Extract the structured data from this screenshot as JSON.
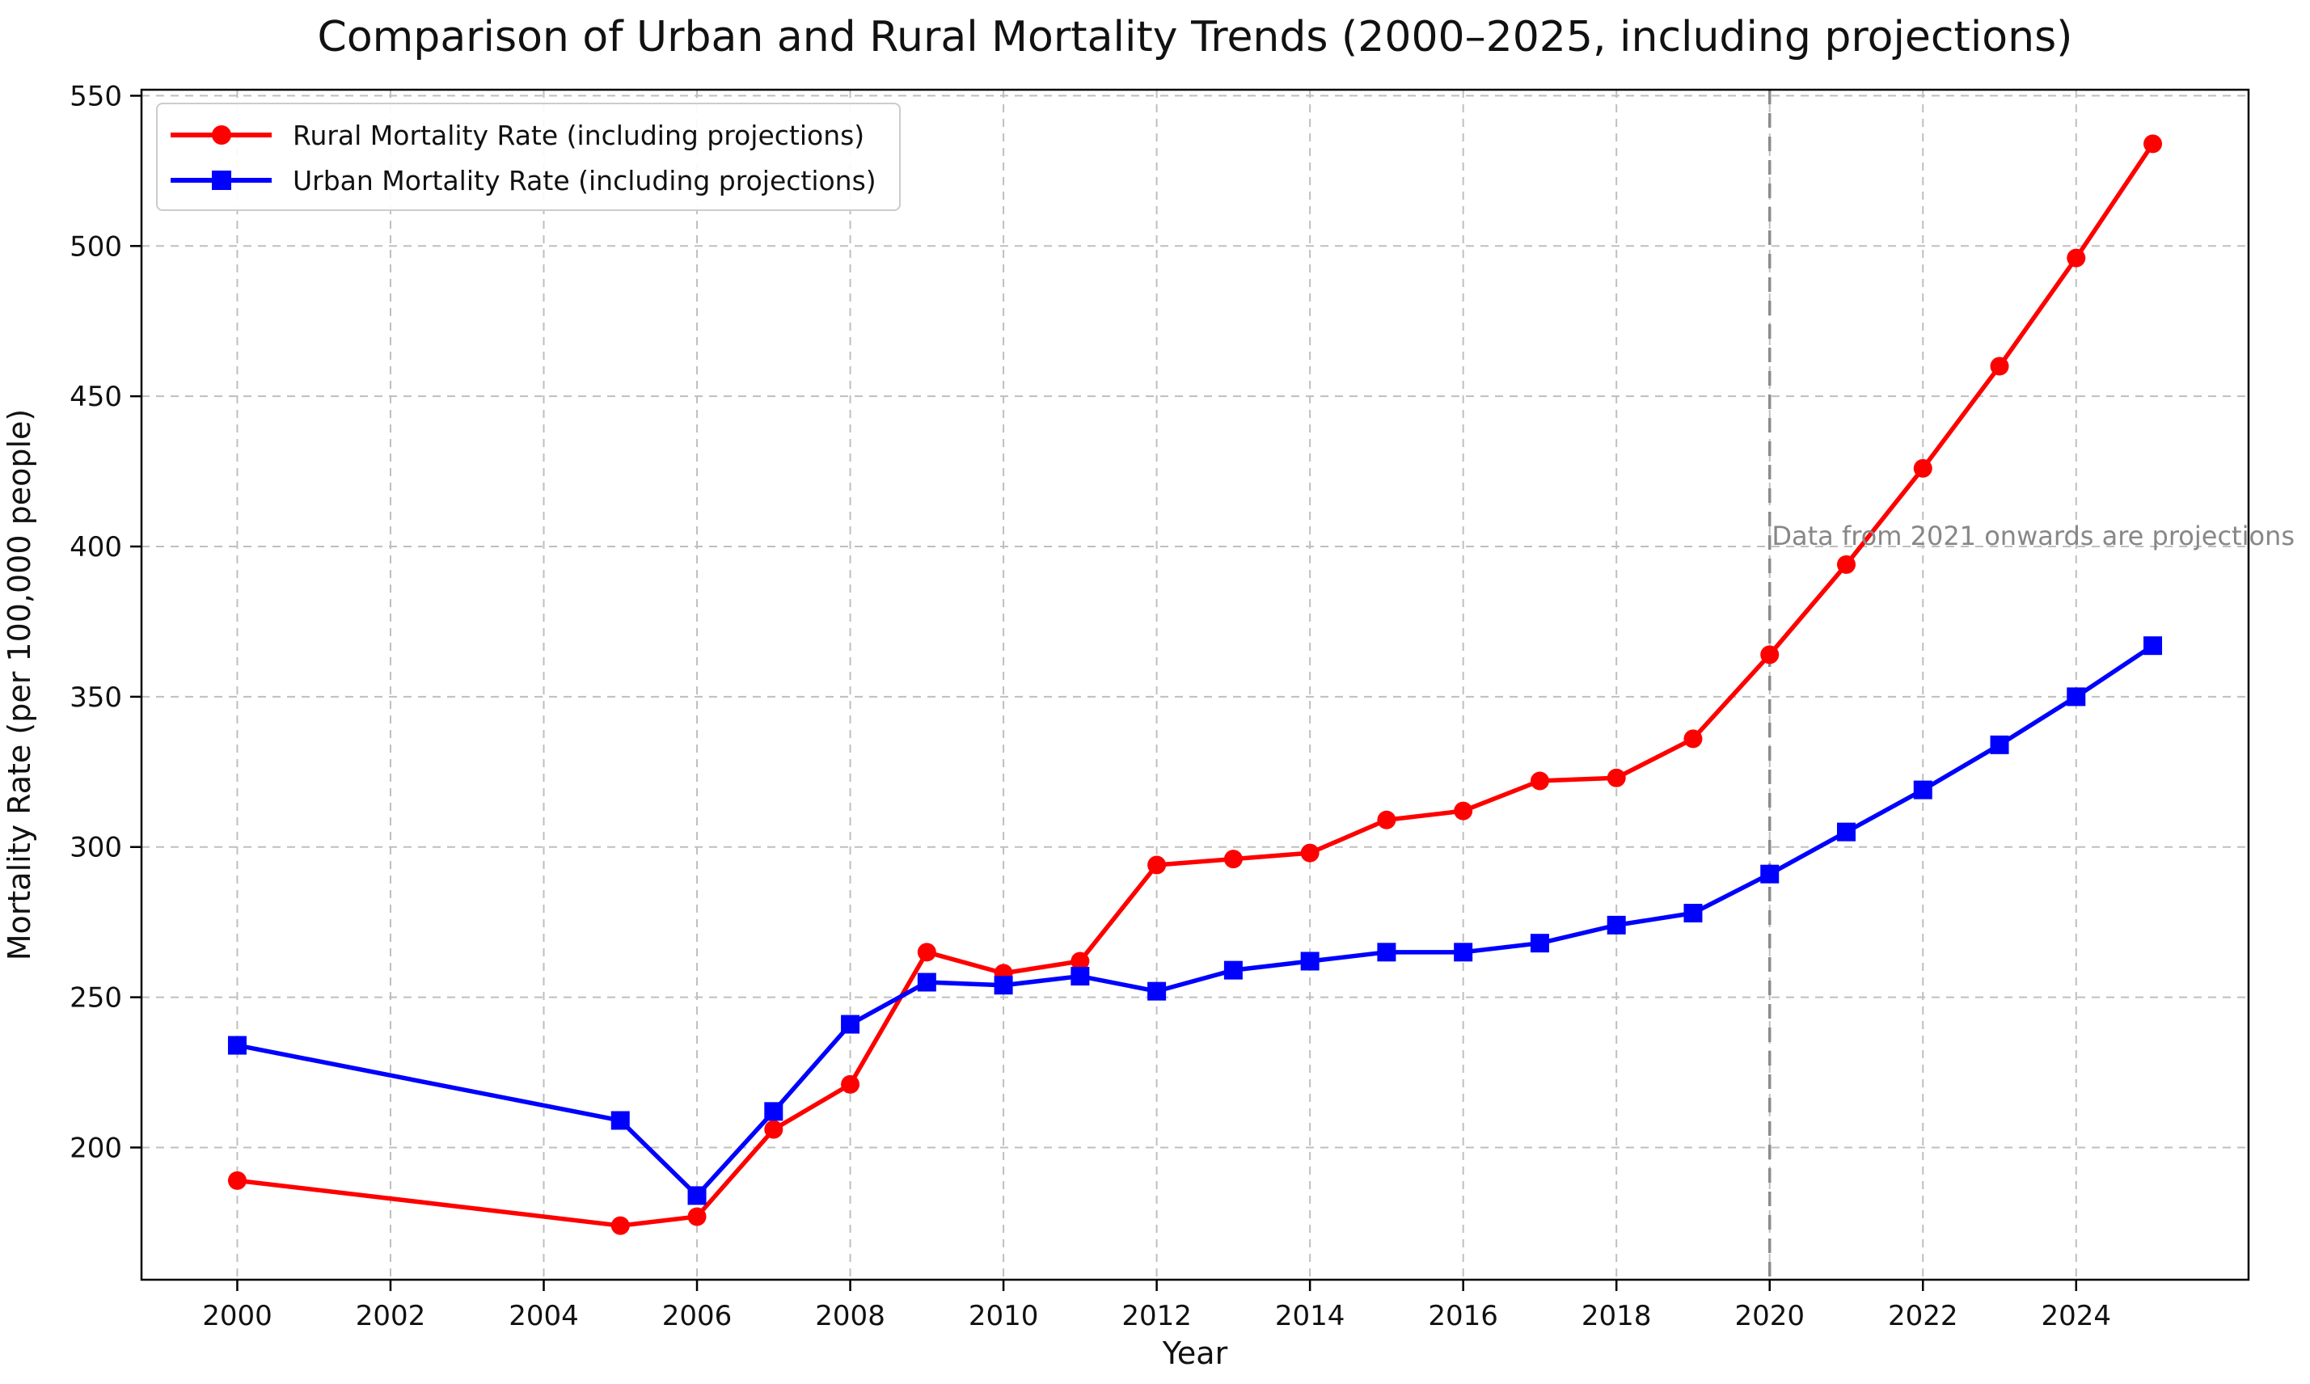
{
  "title": "Comparison of Urban and Rural Mortality Trends (2000–2025, including projections)",
  "axes": {
    "x_label": "Year",
    "y_label": "Mortality Rate (per 100,000 people)",
    "x_ticks": [
      2000,
      2002,
      2004,
      2006,
      2008,
      2010,
      2012,
      2014,
      2016,
      2018,
      2020,
      2022,
      2024
    ],
    "y_ticks": [
      200,
      250,
      300,
      350,
      400,
      450,
      500,
      550
    ]
  },
  "legend": {
    "items": [
      {
        "label": "Rural Mortality Rate (including projections)",
        "color": "#ff0000",
        "marker": "circle"
      },
      {
        "label": "Urban Mortality Rate (including projections)",
        "color": "#0000ff",
        "marker": "square"
      }
    ]
  },
  "annotation": {
    "text": "Data from 2021 onwards are projections",
    "color": "#878787"
  },
  "reference_line": {
    "year": 2020,
    "color": "#8c8c8c"
  },
  "colors": {
    "grid": "#bfbfbf",
    "spine": "#000000",
    "rural": "#ff0000",
    "urban": "#0000ff"
  },
  "chart_data": {
    "type": "line",
    "title": "Comparison of Urban and Rural Mortality Trends (2000–2025, including projections)",
    "xlabel": "Year",
    "ylabel": "Mortality Rate (per 100,000 people)",
    "x": [
      2000,
      2005,
      2006,
      2007,
      2008,
      2009,
      2010,
      2011,
      2012,
      2013,
      2014,
      2015,
      2016,
      2017,
      2018,
      2019,
      2020,
      2021,
      2022,
      2023,
      2024,
      2025
    ],
    "series": [
      {
        "name": "Rural Mortality Rate (including projections)",
        "color": "#ff0000",
        "marker": "circle",
        "values": [
          189,
          174,
          177,
          206,
          221,
          265,
          258,
          262,
          294,
          296,
          298,
          309,
          312,
          322,
          323,
          336,
          364,
          394,
          426,
          460,
          496,
          534
        ]
      },
      {
        "name": "Urban Mortality Rate (including projections)",
        "color": "#0000ff",
        "marker": "square",
        "values": [
          234,
          209,
          184,
          212,
          241,
          255,
          254,
          257,
          252,
          259,
          262,
          265,
          265,
          268,
          274,
          278,
          291,
          305,
          319,
          334,
          350,
          367
        ]
      }
    ],
    "xlim": [
      1998.75,
      2026.25
    ],
    "ylim": [
      156,
      552
    ],
    "grid": true,
    "grid_style": "dashed",
    "legend_position": "upper left",
    "vline_x": 2020,
    "annotation_text": "Data from 2021 onwards are projections",
    "projection_start_year": 2021
  }
}
